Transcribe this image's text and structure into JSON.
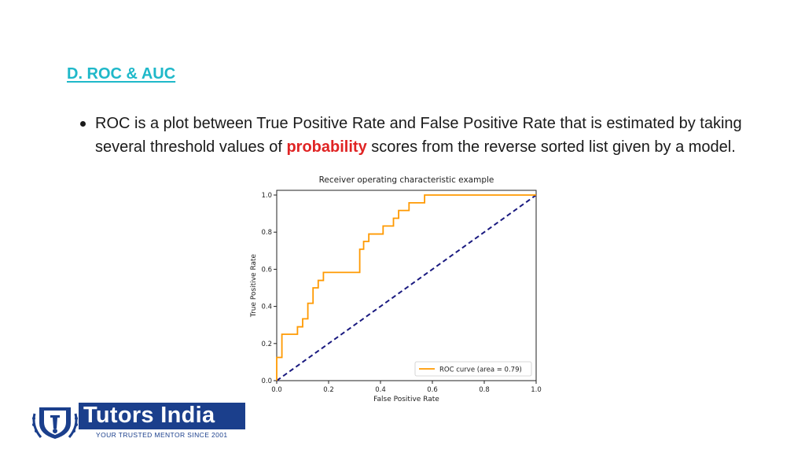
{
  "slide": {
    "heading": "D. ROC & AUC",
    "bullet": {
      "before": "ROC is a plot between True Positive Rate and False Positive Rate that is estimated by taking several threshold values of ",
      "highlight": "probability",
      "after": " scores from the reverse sorted list given by a model."
    }
  },
  "logo": {
    "name": "Tutors India",
    "tagline": "YOUR TRUSTED MENTOR SINCE 2001"
  },
  "colors": {
    "heading": "#1fb8c9",
    "highlight": "#e02424",
    "roc_curve": "#ff9900",
    "diagonal": "#1a1a80",
    "logo_blue": "#1b3f8c"
  },
  "chart_data": {
    "type": "line",
    "title": "Receiver operating characteristic example",
    "xlabel": "False Positive Rate",
    "ylabel": "True Positive Rate",
    "xlim": [
      0.0,
      1.0
    ],
    "ylim": [
      0.0,
      1.0
    ],
    "xticks": [
      "0.0",
      "0.2",
      "0.4",
      "0.6",
      "0.8",
      "1.0"
    ],
    "yticks": [
      "0.0",
      "0.2",
      "0.4",
      "0.6",
      "0.8",
      "1.0"
    ],
    "grid": false,
    "legend_position": "lower-right",
    "series": [
      {
        "name": "ROC curve (area = 0.79)",
        "style": "step",
        "x": [
          0.0,
          0.0,
          0.02,
          0.02,
          0.08,
          0.08,
          0.1,
          0.1,
          0.12,
          0.12,
          0.14,
          0.14,
          0.16,
          0.16,
          0.18,
          0.18,
          0.32,
          0.32,
          0.335,
          0.335,
          0.355,
          0.355,
          0.41,
          0.41,
          0.45,
          0.45,
          0.47,
          0.47,
          0.51,
          0.51,
          0.57,
          0.57,
          1.0
        ],
        "y": [
          0.0,
          0.125,
          0.125,
          0.25,
          0.25,
          0.29,
          0.29,
          0.333,
          0.333,
          0.417,
          0.417,
          0.5,
          0.5,
          0.54,
          0.54,
          0.583,
          0.583,
          0.708,
          0.708,
          0.75,
          0.75,
          0.79,
          0.79,
          0.833,
          0.833,
          0.875,
          0.875,
          0.917,
          0.917,
          0.958,
          0.958,
          1.0,
          1.0
        ]
      },
      {
        "name": "",
        "style": "dashed",
        "x": [
          0.0,
          1.0
        ],
        "y": [
          0.0,
          1.0
        ]
      }
    ]
  }
}
